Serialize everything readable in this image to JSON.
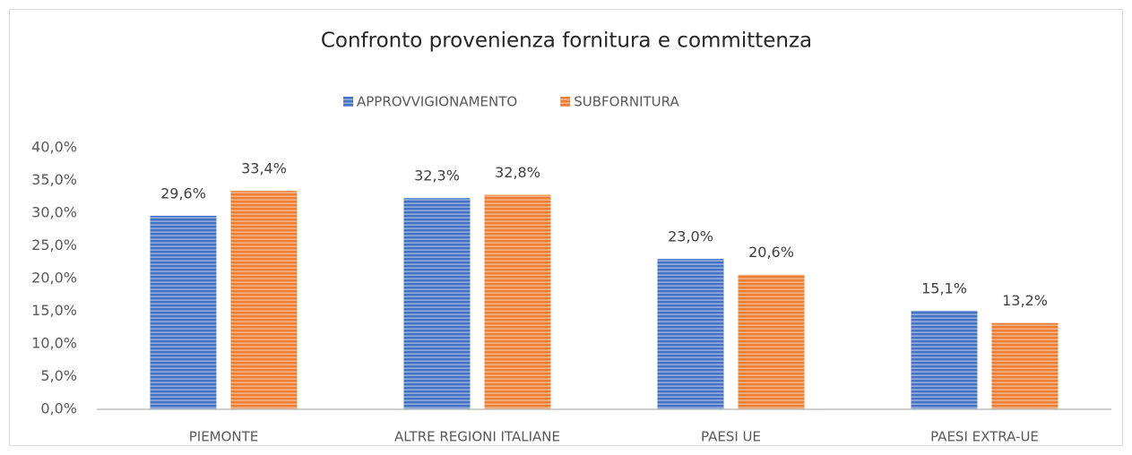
{
  "chart_data": {
    "type": "bar",
    "title": "Confronto provenienza fornitura e committenza",
    "categories": [
      "PIEMONTE",
      "ALTRE REGIONI ITALIANE",
      "PAESI UE",
      "PAESI EXTRA-UE"
    ],
    "series": [
      {
        "name": "APPROVVIGIONAMENTO",
        "color": "#4472c4",
        "values": [
          29.6,
          32.3,
          23.0,
          15.1
        ],
        "value_labels": [
          "29,6%",
          "32,3%",
          "23,0%",
          "15,1%"
        ]
      },
      {
        "name": "SUBFORNITURA",
        "color": "#ed7d31",
        "values": [
          33.4,
          32.8,
          20.6,
          13.2
        ],
        "value_labels": [
          "33,4%",
          "32,8%",
          "20,6%",
          "13,2%"
        ]
      }
    ],
    "ylim": [
      0,
      40
    ],
    "yticks": [
      {
        "value": 0,
        "label": "0,0%"
      },
      {
        "value": 5,
        "label": "5,0%"
      },
      {
        "value": 10,
        "label": "10,0%"
      },
      {
        "value": 15,
        "label": "15,0%"
      },
      {
        "value": 20,
        "label": "20,0%"
      },
      {
        "value": 25,
        "label": "25,0%"
      },
      {
        "value": 30,
        "label": "30,0%"
      },
      {
        "value": 35,
        "label": "35,0%"
      },
      {
        "value": 40,
        "label": "40,0%"
      }
    ],
    "legend": "top",
    "grid": false
  }
}
